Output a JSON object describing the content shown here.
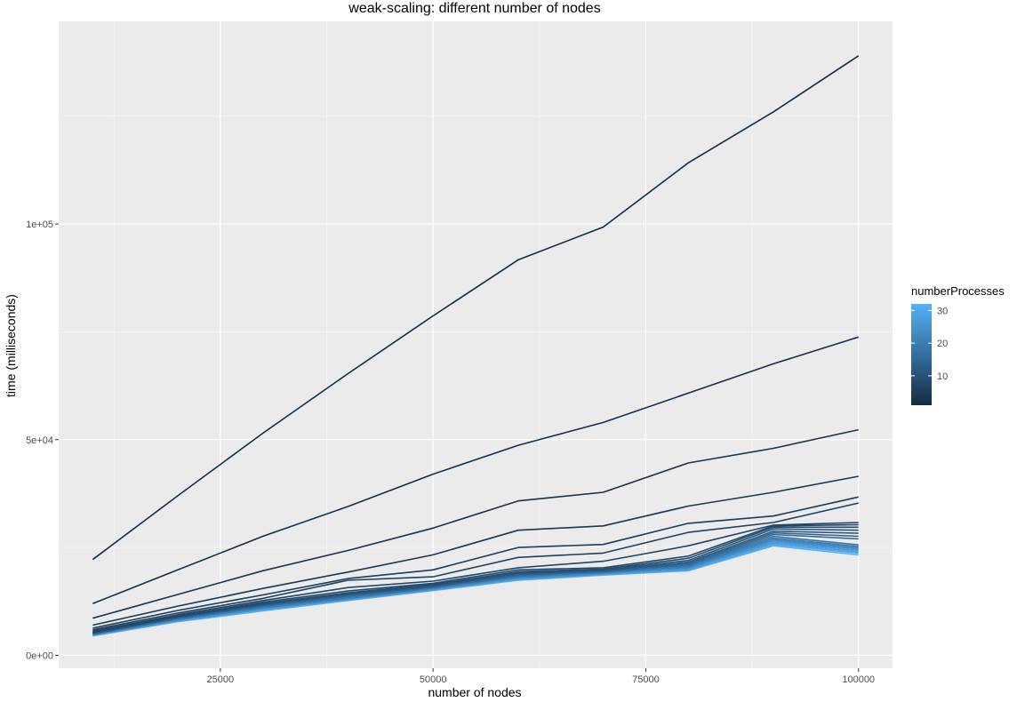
{
  "chart_data": {
    "type": "line",
    "title": "weak-scaling: different number of nodes",
    "xlabel": "number of nodes",
    "ylabel": "time (milliseconds)",
    "xlim": [
      6000,
      104000
    ],
    "ylim": [
      -3000,
      147000
    ],
    "x_ticks": [
      25000,
      50000,
      75000,
      100000
    ],
    "x_tick_labels": [
      "25000",
      "50000",
      "75000",
      "100000"
    ],
    "y_ticks": [
      0,
      50000,
      100000
    ],
    "y_tick_labels": [
      "0e+00",
      "5e+04",
      "1e+05"
    ],
    "grid": true,
    "legend": {
      "title": "numberProcesses",
      "position": "right",
      "type": "colorbar",
      "range": [
        1,
        32
      ],
      "ticks": [
        10,
        20,
        30
      ],
      "tick_labels": [
        "10",
        "20",
        "30"
      ],
      "color_low": "#132B43",
      "color_high": "#56B1F7"
    },
    "x": [
      10000,
      20000,
      30000,
      40000,
      50000,
      60000,
      70000,
      80000,
      90000,
      100000
    ],
    "series": [
      {
        "processes": 1,
        "values": [
          22200,
          37000,
          51500,
          65300,
          78700,
          91700,
          99300,
          114200,
          126000,
          139000
        ]
      },
      {
        "processes": 2,
        "values": [
          12000,
          19800,
          27600,
          34500,
          42000,
          48700,
          54000,
          60800,
          67600,
          73800
        ]
      },
      {
        "processes": 3,
        "values": [
          8600,
          14100,
          19600,
          24300,
          29500,
          35800,
          37800,
          44600,
          48000,
          52300
        ]
      },
      {
        "processes": 4,
        "values": [
          7000,
          11400,
          15500,
          19300,
          23300,
          29000,
          30000,
          34600,
          37800,
          41500
        ]
      },
      {
        "processes": 5,
        "values": [
          6300,
          10400,
          14000,
          17800,
          19800,
          25000,
          25700,
          30600,
          32300,
          36700
        ]
      },
      {
        "processes": 6,
        "values": [
          5900,
          9800,
          13200,
          17400,
          18200,
          22700,
          23700,
          28500,
          30800,
          35300
        ]
      },
      {
        "processes": 7,
        "values": [
          5600,
          9400,
          12700,
          15700,
          17200,
          20300,
          21800,
          25400,
          30200,
          30800
        ]
      },
      {
        "processes": 8,
        "values": [
          5400,
          9100,
          12300,
          14900,
          16700,
          19800,
          20300,
          23000,
          30000,
          30300
        ]
      },
      {
        "processes": 9,
        "values": [
          5300,
          9000,
          12000,
          14500,
          16400,
          19400,
          20000,
          22500,
          29700,
          29700
        ]
      },
      {
        "processes": 10,
        "values": [
          5200,
          8900,
          11900,
          14300,
          16200,
          19100,
          19800,
          22000,
          29300,
          29000
        ]
      },
      {
        "processes": 12,
        "values": [
          5100,
          8800,
          11700,
          14100,
          16000,
          18900,
          19600,
          21600,
          28800,
          28300
        ]
      },
      {
        "processes": 14,
        "values": [
          5000,
          8700,
          11600,
          13900,
          15900,
          18700,
          19500,
          21300,
          28400,
          27600
        ]
      },
      {
        "processes": 16,
        "values": [
          5000,
          8600,
          11400,
          13700,
          15800,
          18500,
          19400,
          21000,
          28000,
          27000
        ]
      },
      {
        "processes": 18,
        "values": [
          4900,
          8500,
          11300,
          13500,
          15700,
          18300,
          19300,
          20800,
          27600,
          25600
        ]
      },
      {
        "processes": 20,
        "values": [
          4900,
          8400,
          11100,
          13300,
          15600,
          18200,
          19200,
          20600,
          27200,
          25200
        ]
      },
      {
        "processes": 22,
        "values": [
          4800,
          8300,
          11000,
          13200,
          15500,
          18000,
          19100,
          20400,
          26900,
          24900
        ]
      },
      {
        "processes": 24,
        "values": [
          4800,
          8200,
          10900,
          13100,
          15400,
          17900,
          19000,
          20200,
          26600,
          24600
        ]
      },
      {
        "processes": 26,
        "values": [
          4700,
          8100,
          10700,
          13000,
          15300,
          17800,
          18900,
          20000,
          26300,
          24300
        ]
      },
      {
        "processes": 28,
        "values": [
          4700,
          8000,
          10600,
          12900,
          15200,
          17600,
          18800,
          19800,
          26000,
          24000
        ]
      },
      {
        "processes": 30,
        "values": [
          4600,
          7900,
          10500,
          12800,
          15100,
          17500,
          18700,
          19700,
          25700,
          23700
        ]
      },
      {
        "processes": 32,
        "values": [
          4500,
          7800,
          10300,
          12700,
          15000,
          17400,
          18600,
          19600,
          25400,
          23300
        ]
      }
    ]
  }
}
